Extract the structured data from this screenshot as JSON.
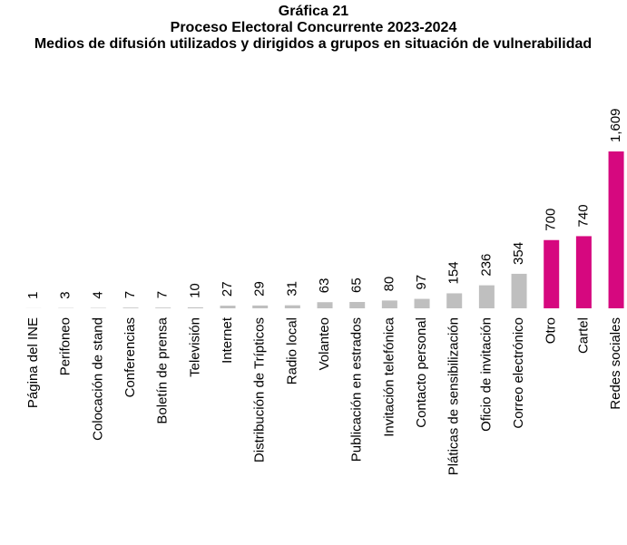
{
  "chart_data": {
    "type": "bar",
    "title": "Gráfica 21",
    "subtitle": "Proceso Electoral Concurrente 2023-2024",
    "description": "Medios de difusión utilizados y dirigidos a grupos en situación de vulnerabilidad",
    "categories": [
      "Página del INE",
      "Perifoneo",
      "Colocación de stand",
      "Conferencias",
      "Boletín de prensa",
      "Televisión",
      "Internet",
      "Distribución de Trípticos",
      "Radio local",
      "Volanteo",
      "Publicación en estrados",
      "Invitación telefónica",
      "Contacto personal",
      "Pláticas de sensibilización",
      "Oficio de invitación",
      "Correo electrónico",
      "Otro",
      "Cartel",
      "Redes sociales"
    ],
    "values": [
      1,
      3,
      4,
      7,
      7,
      10,
      27,
      29,
      31,
      63,
      65,
      80,
      97,
      154,
      236,
      354,
      700,
      740,
      1609
    ],
    "value_labels": [
      "1",
      "3",
      "4",
      "7",
      "7",
      "10",
      "27",
      "29",
      "31",
      "63",
      "65",
      "80",
      "97",
      "154",
      "236",
      "354",
      "700",
      "740",
      "1,609"
    ],
    "colors": [
      "#bfbfbf",
      "#bfbfbf",
      "#bfbfbf",
      "#bfbfbf",
      "#bfbfbf",
      "#bfbfbf",
      "#bfbfbf",
      "#bfbfbf",
      "#bfbfbf",
      "#bfbfbf",
      "#bfbfbf",
      "#bfbfbf",
      "#bfbfbf",
      "#bfbfbf",
      "#bfbfbf",
      "#bfbfbf",
      "#d6087f",
      "#d6087f",
      "#d6087f"
    ]
  }
}
